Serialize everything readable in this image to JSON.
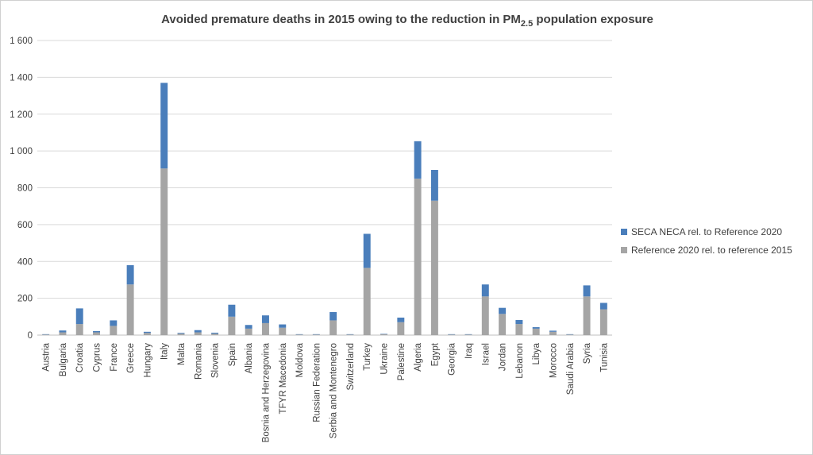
{
  "chart_data": {
    "type": "bar",
    "stacked": true,
    "title": "Avoided premature deaths in 2015 owing to the reduction in PM",
    "title_subscript": "2.5",
    "title_suffix": " population exposure",
    "ylim": [
      0,
      1600
    ],
    "yticks": [
      0,
      200,
      400,
      600,
      800,
      1000,
      1200,
      1400,
      1600
    ],
    "ytick_labels": [
      "0",
      "200",
      "400",
      "600",
      "800",
      "1 000",
      "1 200",
      "1 400",
      "1 600"
    ],
    "grid": true,
    "legend_position": "right",
    "categories": [
      "Austria",
      "Bulgaria",
      "Croatia",
      "Cyprus",
      "France",
      "Greece",
      "Hungary",
      "Italy",
      "Malta",
      "Romania",
      "Slovenia",
      "Spain",
      "Albania",
      "Bosnia and Herzegovina",
      "TFYR Macedonia",
      "Moldova",
      "Russian Federation",
      "Serbia and Montenegro",
      "Switzerland",
      "Turkey",
      "Ukraine",
      "Palestine",
      "Algeria",
      "Egypt",
      "Georgia",
      "Iraq",
      "Israel",
      "Jordan",
      "Lebanon",
      "Libya",
      "Morocco",
      "Saudi Arabia",
      "Syria",
      "Tunisia"
    ],
    "series": [
      {
        "name": "Reference 2020 rel. to reference 2015",
        "color": "#a5a5a5",
        "values": [
          3,
          15,
          60,
          15,
          50,
          275,
          12,
          905,
          8,
          15,
          8,
          100,
          35,
          65,
          40,
          3,
          3,
          80,
          3,
          365,
          5,
          70,
          850,
          730,
          3,
          3,
          210,
          115,
          60,
          35,
          18,
          3,
          210,
          140
        ]
      },
      {
        "name": "SECA NECA rel. to Reference 2020",
        "color": "#4a7ebb",
        "values": [
          2,
          10,
          85,
          7,
          30,
          105,
          6,
          465,
          4,
          12,
          5,
          65,
          20,
          42,
          18,
          2,
          2,
          45,
          2,
          185,
          2,
          25,
          203,
          167,
          2,
          2,
          65,
          33,
          22,
          8,
          6,
          2,
          60,
          35
        ]
      }
    ]
  }
}
